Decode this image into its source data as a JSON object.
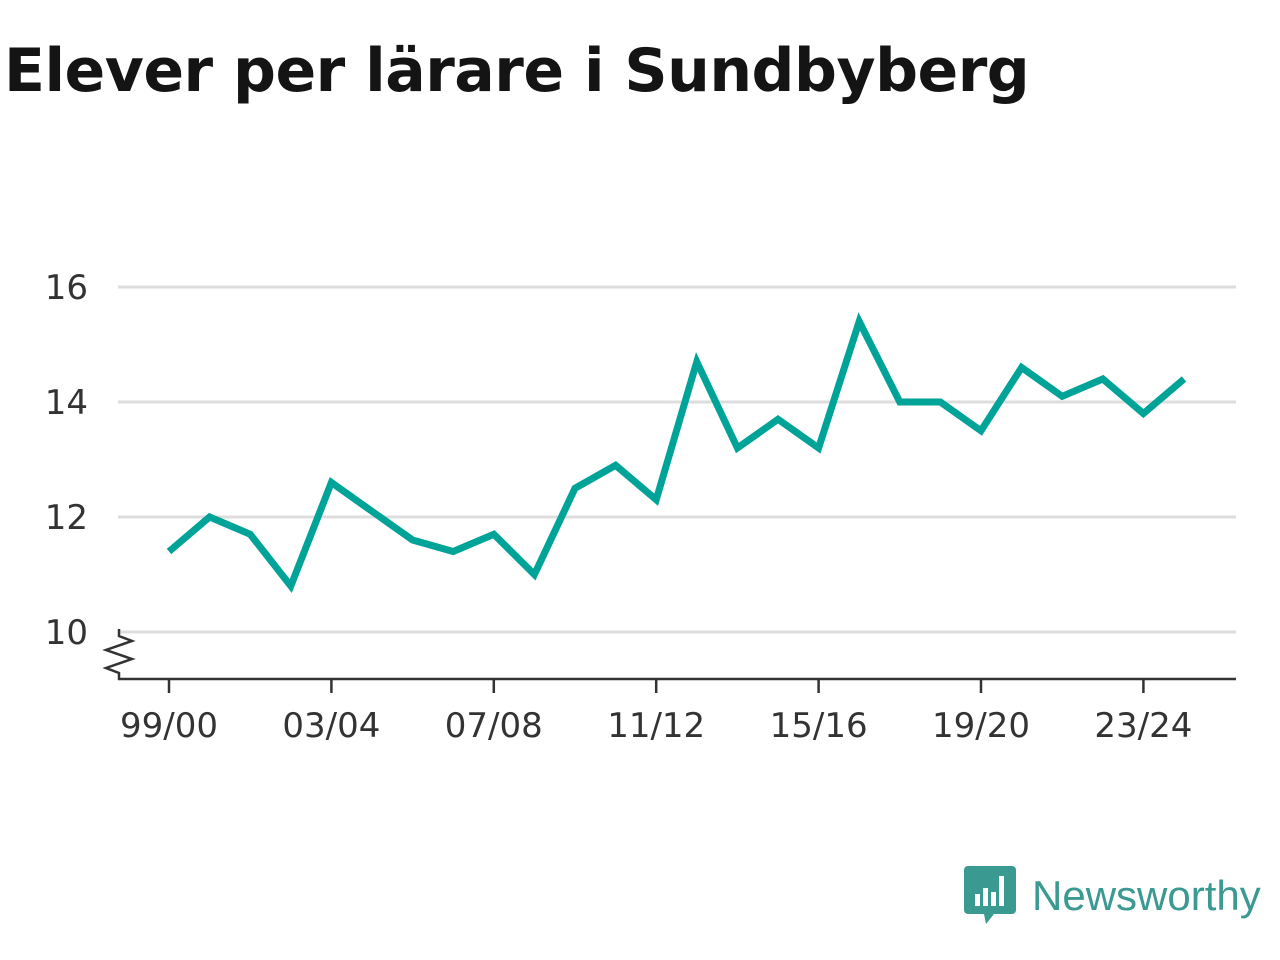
{
  "title": "Elever per lärare i Sundbyberg",
  "brand": {
    "name": "Newsworthy",
    "icon": "chart-bubble-icon"
  },
  "colors": {
    "line": "#00a398",
    "grid": "#dddddd",
    "axis": "#333333",
    "brand": "#3a9a92"
  },
  "chart_data": {
    "type": "line",
    "title": "Elever per lärare i Sundbyberg",
    "xlabel": "",
    "ylabel": "",
    "x": [
      "99/00",
      "00/01",
      "01/02",
      "02/03",
      "03/04",
      "04/05",
      "05/06",
      "06/07",
      "07/08",
      "08/09",
      "09/10",
      "10/11",
      "11/12",
      "12/13",
      "13/14",
      "14/15",
      "15/16",
      "16/17",
      "17/18",
      "18/19",
      "19/20",
      "20/21",
      "21/22",
      "22/23",
      "23/24",
      "24/25"
    ],
    "x_tick_labels": [
      "99/00",
      "03/04",
      "07/08",
      "11/12",
      "15/16",
      "19/20",
      "23/24"
    ],
    "y_ticks": [
      10,
      12,
      14,
      16
    ],
    "ylim": [
      10,
      16
    ],
    "y_axis_break": true,
    "grid": true,
    "series": [
      {
        "values": [
          11.4,
          12.0,
          11.7,
          10.8,
          12.6,
          12.1,
          11.6,
          11.4,
          11.7,
          11.0,
          12.5,
          12.9,
          12.3,
          14.7,
          13.2,
          13.7,
          13.2,
          15.4,
          14.0,
          14.0,
          13.5,
          14.6,
          14.1,
          14.4,
          13.8,
          14.4
        ]
      }
    ]
  }
}
